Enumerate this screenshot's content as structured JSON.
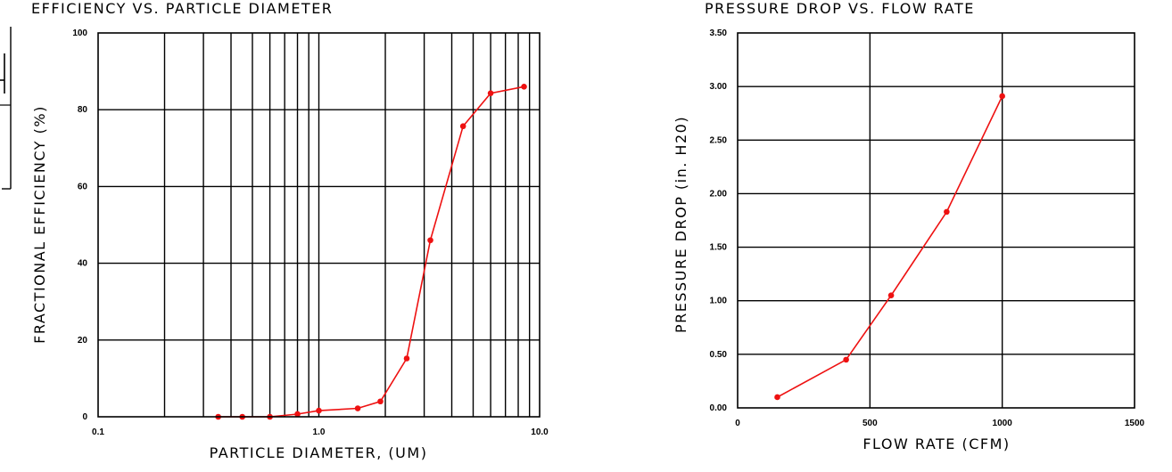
{
  "colors": {
    "series": "#ee1111",
    "grid": "#000000",
    "background": "#ffffff"
  },
  "chart_data": [
    {
      "type": "line",
      "title": "EFFICIENCY VS. PARTICLE DIAMETER",
      "xlabel": "PARTICLE DIAMETER, (UM)",
      "ylabel": "FRACTIONAL EFFICIENCY (%)",
      "xscale": "log",
      "xlim": [
        0.1,
        10.0
      ],
      "ylim": [
        0,
        100
      ],
      "xticks": [
        0.1,
        1.0,
        10.0
      ],
      "xtick_labels": [
        "0.1",
        "1.0",
        "10.0"
      ],
      "yticks": [
        0,
        20,
        40,
        60,
        80,
        100
      ],
      "ytick_labels": [
        "0",
        "20",
        "40",
        "60",
        "80",
        "100"
      ],
      "grid": true,
      "series": [
        {
          "x": [
            0.35,
            0.45,
            0.6,
            0.8,
            1.0,
            1.5,
            1.9,
            2.5,
            3.2,
            4.5,
            6.0,
            8.5
          ],
          "y": [
            0,
            0,
            0,
            0.7,
            1.6,
            2.2,
            4.0,
            15.2,
            46.0,
            75.7,
            84.3,
            86.0
          ]
        }
      ]
    },
    {
      "type": "line",
      "title": "PRESSURE DROP VS. FLOW RATE",
      "xlabel": "FLOW RATE (CFM)",
      "ylabel": "PRESSURE DROP (in. H20)",
      "xscale": "linear",
      "xlim": [
        0,
        1500
      ],
      "ylim": [
        0,
        3.5
      ],
      "xticks": [
        0,
        500,
        1000,
        1500
      ],
      "xtick_labels": [
        "0",
        "500",
        "1000",
        "1500"
      ],
      "yticks": [
        0,
        0.5,
        1.0,
        1.5,
        2.0,
        2.5,
        3.0,
        3.5
      ],
      "ytick_labels": [
        "0.00",
        "0.50",
        "1.00",
        "1.50",
        "2.00",
        "2.50",
        "3.00",
        "3.50"
      ],
      "grid": true,
      "series": [
        {
          "x": [
            150,
            410,
            580,
            790,
            1000
          ],
          "y": [
            0.1,
            0.45,
            1.05,
            1.83,
            2.91
          ]
        }
      ]
    }
  ]
}
